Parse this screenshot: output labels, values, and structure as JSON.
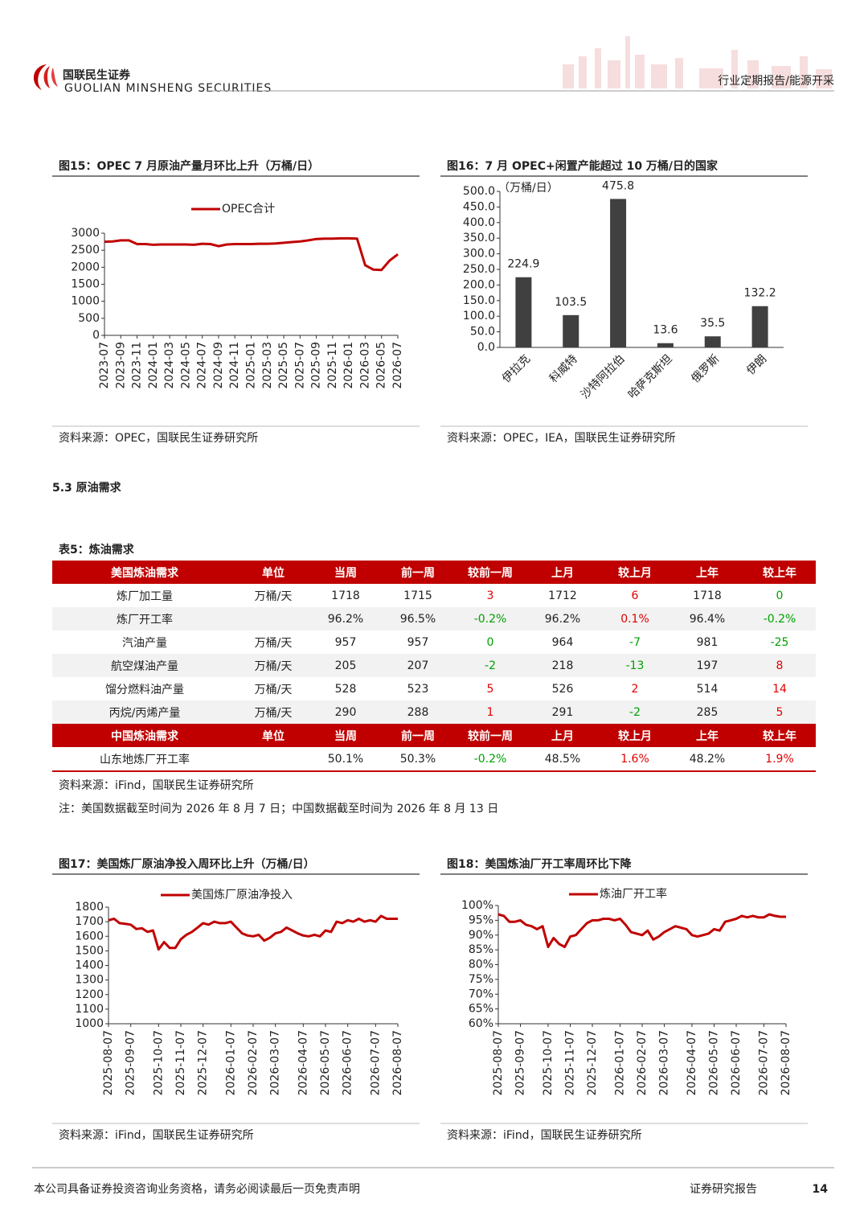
{
  "header": {
    "brand": "国联民生证券",
    "brand_en": "GUOLIAN MINSHENG SECURITIES",
    "report_type": "行业定期报告/能源开采"
  },
  "chart_data": [
    {
      "type": "line",
      "title": "图15：OPEC 7 月原油产量月环比上升（万桶/日）",
      "source": "资料来源：OPEC，国联民生证券研究所",
      "legend": "top",
      "categories": [
        "2023-07",
        null,
        "2023-09",
        null,
        "2023-11",
        null,
        "2024-01",
        null,
        "2024-03",
        null,
        "2024-05",
        null,
        "2024-07",
        null,
        "2024-09",
        null,
        "2024-11",
        null,
        "2025-01",
        null,
        "2025-03",
        null,
        "2025-05",
        null,
        "2025-07",
        null,
        "2025-09",
        null,
        "2025-11",
        null,
        "2026-01",
        null,
        "2026-03",
        null,
        "2026-05",
        null,
        "2026-07"
      ],
      "series": [
        {
          "name": "OPEC合计",
          "color": "#c00000",
          "values": [
            2750,
            2760,
            2790,
            2790,
            2680,
            2680,
            2660,
            2670,
            2670,
            2670,
            2670,
            2660,
            2690,
            2680,
            2620,
            2670,
            2680,
            2680,
            2680,
            2690,
            2690,
            2700,
            2720,
            2740,
            2760,
            2790,
            2830,
            2840,
            2840,
            2850,
            2850,
            2840,
            2060,
            1930,
            1920,
            2200,
            2380
          ]
        }
      ],
      "ylim": [
        0,
        3000
      ],
      "yticks": [
        0,
        500,
        1000,
        1500,
        2000,
        2500,
        3000
      ]
    },
    {
      "type": "bar",
      "title": "图16：7 月 OPEC+闲置产能超过 10 万桶/日的国家",
      "source": "资料来源：OPEC，IEA，国联民生证券研究所",
      "y_label": "（万桶/日）",
      "categories": [
        "伊拉克",
        "科威特",
        "沙特阿拉伯",
        "哈萨克斯坦",
        "俄罗斯",
        "伊朗"
      ],
      "values": [
        224.9,
        103.5,
        475.8,
        13.6,
        35.5,
        132.2
      ],
      "color": "#404040",
      "ylim": [
        0,
        500
      ],
      "yticks": [
        {
          "value": 0,
          "label": "0.0"
        },
        {
          "value": 50,
          "label": "50.0"
        },
        {
          "value": 100,
          "label": "100.0"
        },
        {
          "value": 150,
          "label": "150.0"
        },
        {
          "value": 200,
          "label": "200.0"
        },
        {
          "value": 250,
          "label": "250.0"
        },
        {
          "value": 300,
          "label": "300.0"
        },
        {
          "value": 350,
          "label": "350.0"
        },
        {
          "value": 400,
          "label": "400.0"
        },
        {
          "value": 450,
          "label": "450.0"
        },
        {
          "value": 500,
          "label": "500.0"
        }
      ]
    },
    {
      "type": "line",
      "title": "图17：美国炼厂原油净投入周环比上升（万桶/日）",
      "source": "资料来源：iFind，国联民生证券研究所",
      "legend": "top",
      "categories": [
        "2025-08-07",
        null,
        null,
        null,
        "2025-09-07",
        null,
        null,
        null,
        null,
        "2025-10-07",
        null,
        null,
        null,
        "2025-11-07",
        null,
        null,
        null,
        "2025-12-07",
        null,
        null,
        null,
        null,
        "2026-01-07",
        null,
        null,
        null,
        "2026-02-07",
        null,
        null,
        null,
        "2026-03-07",
        null,
        null,
        null,
        null,
        "2026-04-07",
        null,
        null,
        null,
        "2026-05-07",
        null,
        null,
        null,
        "2026-06-07",
        null,
        null,
        null,
        null,
        "2026-07-07",
        null,
        null,
        null,
        "2026-08-07"
      ],
      "series": [
        {
          "name": "美国炼厂原油净投入",
          "color": "#c00000",
          "values": [
            1710,
            1720,
            1690,
            1685,
            1680,
            1650,
            1655,
            1630,
            1640,
            1510,
            1560,
            1520,
            1520,
            1580,
            1610,
            1630,
            1660,
            1690,
            1680,
            1700,
            1690,
            1690,
            1700,
            1660,
            1620,
            1605,
            1600,
            1610,
            1570,
            1590,
            1620,
            1630,
            1660,
            1640,
            1620,
            1605,
            1600,
            1610,
            1600,
            1640,
            1630,
            1700,
            1690,
            1710,
            1700,
            1720,
            1700,
            1710,
            1700,
            1740,
            1720,
            1720,
            1720
          ]
        }
      ],
      "ylim": [
        1000,
        1800
      ],
      "yticks": [
        1000,
        1100,
        1200,
        1300,
        1400,
        1500,
        1600,
        1700,
        1800
      ]
    },
    {
      "type": "line",
      "title": "图18：美国炼油厂开工率周环比下降",
      "source": "资料来源：iFind，国联民生证券研究所",
      "legend": "top",
      "categories": [
        "2025-08-07",
        null,
        null,
        null,
        "2025-09-07",
        null,
        null,
        null,
        null,
        "2025-10-07",
        null,
        null,
        null,
        "2025-11-07",
        null,
        null,
        null,
        "2025-12-07",
        null,
        null,
        null,
        null,
        "2026-01-07",
        null,
        null,
        null,
        "2026-02-07",
        null,
        null,
        null,
        "2026-03-07",
        null,
        null,
        null,
        null,
        "2026-04-07",
        null,
        null,
        null,
        "2026-05-07",
        null,
        null,
        null,
        "2026-06-07",
        null,
        null,
        null,
        null,
        "2026-07-07",
        null,
        null,
        null,
        "2026-08-07"
      ],
      "series": [
        {
          "name": "炼油厂开工率",
          "color": "#c00000",
          "values": [
            97,
            96.5,
            94.5,
            94.5,
            95,
            93.5,
            93,
            92,
            93,
            86,
            89,
            87,
            86,
            89.5,
            90,
            92,
            94,
            95,
            95,
            95.5,
            95.5,
            95,
            95.5,
            93.5,
            91,
            90.5,
            90,
            91.5,
            88.5,
            89.5,
            91,
            92,
            93,
            92.5,
            92,
            90,
            89.5,
            90,
            90.5,
            92,
            91.5,
            94.5,
            95,
            95.5,
            96.5,
            96,
            96.5,
            96,
            96,
            97,
            96.5,
            96.2,
            96.2
          ]
        }
      ],
      "ylim": [
        60,
        100
      ],
      "yticks": [
        {
          "value": 60,
          "label": "60%"
        },
        {
          "value": 65,
          "label": "65%"
        },
        {
          "value": 70,
          "label": "70%"
        },
        {
          "value": 75,
          "label": "75%"
        },
        {
          "value": 80,
          "label": "80%"
        },
        {
          "value": 85,
          "label": "85%"
        },
        {
          "value": 90,
          "label": "90%"
        },
        {
          "value": 95,
          "label": "95%"
        },
        {
          "value": 100,
          "label": "100%"
        }
      ]
    }
  ],
  "section_title": "5.3 原油需求",
  "table": {
    "title": "表5：炼油需求",
    "sections": [
      {
        "header": [
          "美国炼油需求",
          "单位",
          "当周",
          "前一周",
          "较前一周",
          "上月",
          "较上月",
          "上年",
          "较上年"
        ],
        "rows": [
          [
            "炼厂加工量",
            "万桶/天",
            "1718",
            "1715",
            "3",
            "1712",
            "6",
            "1718",
            "0"
          ],
          [
            "炼厂开工率",
            null,
            "96.2%",
            "96.5%",
            "-0.2%",
            "96.2%",
            "0.1%",
            "96.4%",
            "-0.2%"
          ],
          [
            "汽油产量",
            "万桶/天",
            "957",
            "957",
            "0",
            "964",
            "-7",
            "981",
            "-25"
          ],
          [
            "航空煤油产量",
            "万桶/天",
            "205",
            "207",
            "-2",
            "218",
            "-13",
            "197",
            "8"
          ],
          [
            "馏分燃料油产量",
            "万桶/天",
            "528",
            "523",
            "5",
            "526",
            "2",
            "514",
            "14"
          ],
          [
            "丙烷/丙烯产量",
            "万桶/天",
            "290",
            "288",
            "1",
            "291",
            "-2",
            "285",
            "5"
          ]
        ]
      },
      {
        "header": [
          "中国炼油需求",
          "单位",
          "当周",
          "前一周",
          "较前一周",
          "上月",
          "较上月",
          "上年",
          "较上年"
        ],
        "rows": [
          [
            "山东地炼厂开工率",
            null,
            "50.1%",
            "50.3%",
            "-0.2%",
            "48.5%",
            "1.6%",
            "48.2%",
            "1.9%"
          ]
        ]
      }
    ],
    "source": "资料来源：iFind，国联民生证券研究所",
    "note": "注：美国数据截至时间为 2026 年 8 月 7 日；中国数据截至时间为 2026 年 8 月 13 日"
  },
  "footer": {
    "disclaimer": "本公司具备证券投资咨询业务资格，请务必阅读最后一页免责声明",
    "report_label": "证券研究报告",
    "page": "14"
  }
}
